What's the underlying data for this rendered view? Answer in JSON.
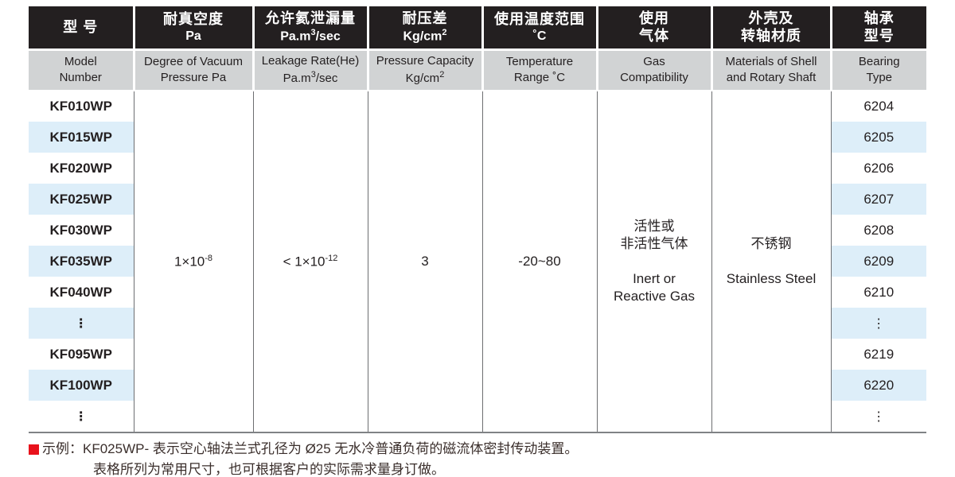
{
  "palette": {
    "header_bg": "#231f20",
    "header_text": "#ffffff",
    "subheader_bg": "#d1d3d4",
    "stripe_blue": "#ddeef9",
    "divider_gray": "#6d6e71",
    "note_red": "#e8121c"
  },
  "table": {
    "columns": {
      "model": {
        "zh": "型 号",
        "en1": "Model",
        "en2": "Number"
      },
      "vacuum": {
        "zh1": "耐真空度",
        "zh2": "Pa",
        "en1": "Degree of Vacuum",
        "en2": "Pressure Pa"
      },
      "leakage": {
        "zh1": "允许氦泄漏量",
        "unit_pre": "Pa.m",
        "unit_sup": "3",
        "unit_post": "/sec",
        "en1": "Leakage Rate(He)"
      },
      "pressure": {
        "zh1": "耐压差",
        "unit_pre": "Kg/cm",
        "unit_sup": "2",
        "en1": "Pressure Capacity"
      },
      "temperature": {
        "zh1": "使用温度范围",
        "zh2": "˚C",
        "en1": "Temperature",
        "en2": "Range ˚C"
      },
      "gas": {
        "zh1": "使用",
        "zh2": "气体",
        "en1": "Gas",
        "en2": "Compatibility"
      },
      "materials": {
        "zh1": "外壳及",
        "zh2": "转轴材质",
        "en1": "Materials of Shell",
        "en2": "and Rotary Shaft"
      },
      "bearing": {
        "zh1": "轴承",
        "zh2": "型号",
        "en1": "Bearing",
        "en2": "Type"
      }
    },
    "merged": {
      "vacuum_pre": "1×10",
      "vacuum_sup": "-8",
      "leakage_pre": "< 1×10",
      "leakage_sup": "-12",
      "pressure": "3",
      "temperature": "-20~80",
      "gas_zh1": "活性或",
      "gas_zh2": "非活性气体",
      "gas_en1": "Inert or",
      "gas_en2": "Reactive Gas",
      "materials_zh": "不锈钢",
      "materials_en": "Stainless Steel"
    },
    "rows": [
      {
        "model": "KF010WP",
        "bearing": "6204"
      },
      {
        "model": "KF015WP",
        "bearing": "6205"
      },
      {
        "model": "KF020WP",
        "bearing": "6206"
      },
      {
        "model": "KF025WP",
        "bearing": "6207"
      },
      {
        "model": "KF030WP",
        "bearing": "6208"
      },
      {
        "model": "KF035WP",
        "bearing": "6209"
      },
      {
        "model": "KF040WP",
        "bearing": "6210"
      },
      {
        "model": "⋮",
        "bearing": "⋮"
      },
      {
        "model": "KF095WP",
        "bearing": "6219"
      },
      {
        "model": "KF100WP",
        "bearing": "6220"
      },
      {
        "model": "⋮",
        "bearing": "⋮"
      }
    ]
  },
  "note": {
    "label": "示例：",
    "line1": "KF025WP- 表示空心轴法兰式孔径为 Ø25 无水冷普通负荷的磁流体密封传动装置。",
    "line2": "表格所列为常用尺寸，也可根据客户的实际需求量身订做。"
  }
}
